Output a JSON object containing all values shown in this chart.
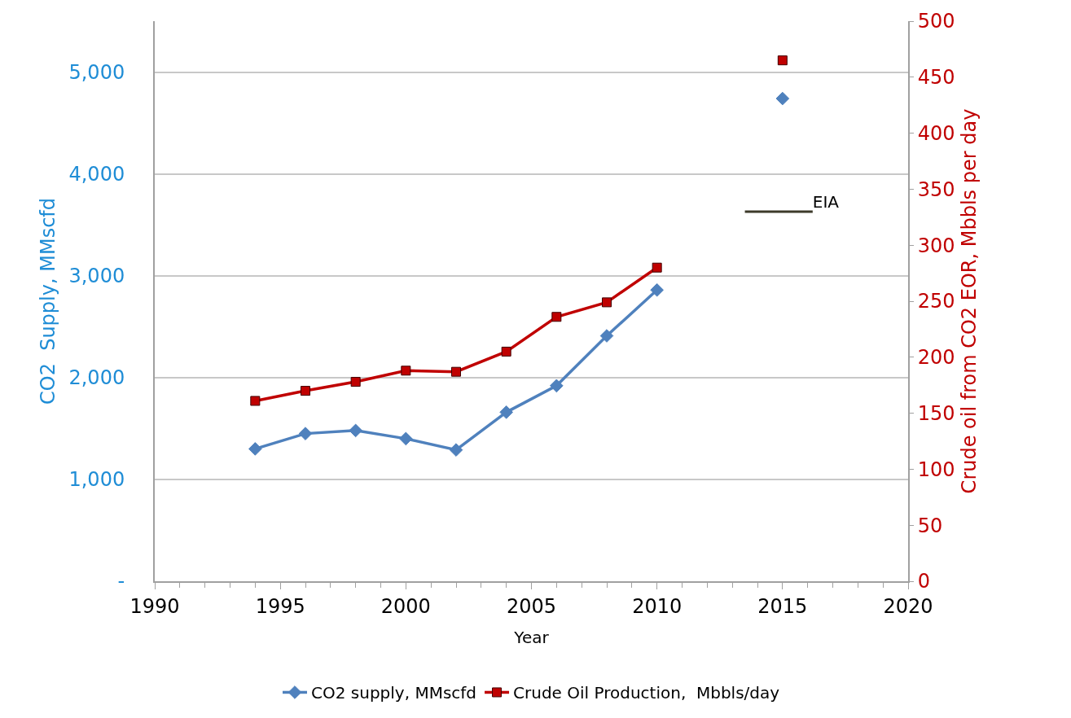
{
  "chart_data": {
    "type": "line",
    "xlabel": "Year",
    "ylabel": "CO2  Supply, MMscfd",
    "y2label": "Crude oil from CO2 EOR, Mbbls per day",
    "x": [
      1994,
      1996,
      1998,
      2000,
      2002,
      2004,
      2006,
      2008,
      2010,
      2012,
      2015
    ],
    "series": [
      {
        "name": "CO2 supply, MMscfd",
        "color": "#4f81bd",
        "marker": "diamond",
        "values": [
          1300,
          1450,
          1480,
          1400,
          1290,
          1660,
          1920,
          2410,
          2860,
          null,
          4740
        ]
      },
      {
        "name": "Crude Oil Production,  Mbbls/day",
        "color": "#c00000",
        "marker": "square",
        "axis": "y2",
        "values": [
          161,
          170,
          178,
          188,
          187,
          205,
          236,
          249,
          280,
          null,
          465
        ]
      },
      {
        "name": "EIA",
        "color": "#3d3a2a",
        "marker": "none",
        "axis": "y2",
        "x": [
          2013.5,
          2016.2
        ],
        "values": [
          330,
          330
        ]
      }
    ],
    "xlim": [
      1990,
      2020
    ],
    "xticks": [
      1990,
      1995,
      2000,
      2005,
      2010,
      2015,
      2020
    ],
    "ylim": [
      0,
      5500
    ],
    "yticks": [
      {
        "value": 0,
        "label": "-"
      },
      {
        "value": 1000,
        "label": "1,000"
      },
      {
        "value": 2000,
        "label": "2,000"
      },
      {
        "value": 3000,
        "label": "3,000"
      },
      {
        "value": 4000,
        "label": "4,000"
      },
      {
        "value": 5000,
        "label": "5,000"
      }
    ],
    "y2lim": [
      0,
      500
    ],
    "y2ticks": [
      0,
      50,
      100,
      150,
      200,
      250,
      300,
      350,
      400,
      450,
      500
    ],
    "grid": "y",
    "legend": "bottom"
  }
}
